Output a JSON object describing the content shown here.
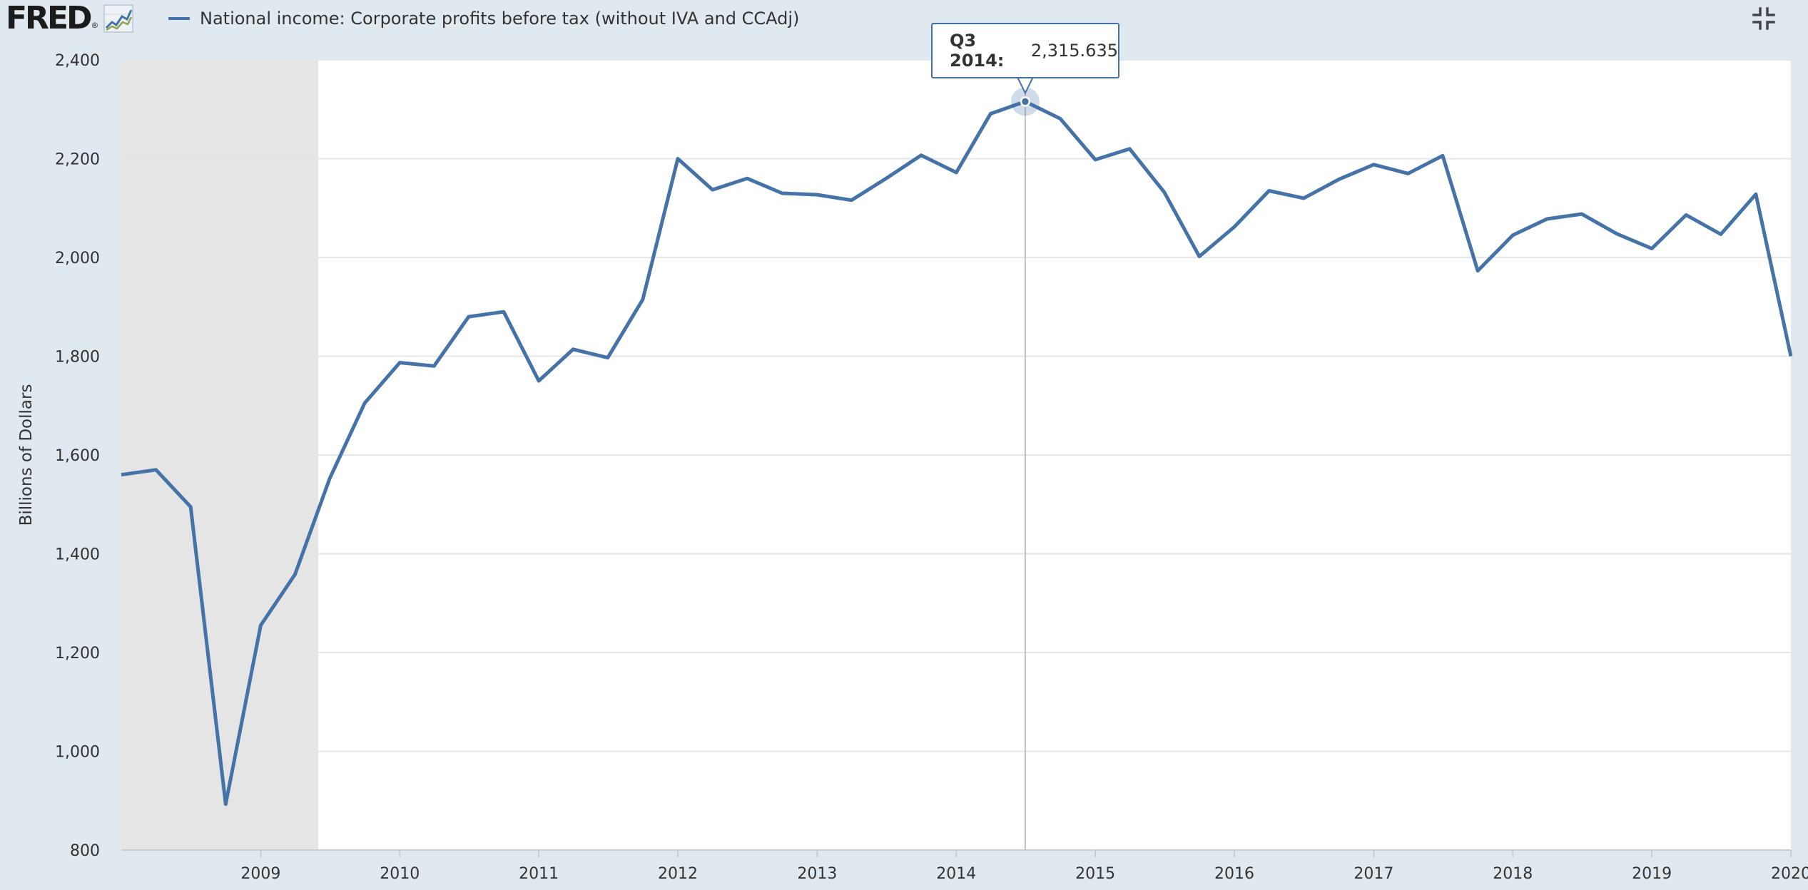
{
  "header": {
    "logo_text": "FRED",
    "logo_mark": "®",
    "legend_label": "National income: Corporate profits before tax (without IVA and CCAdj)"
  },
  "icons": {
    "logo_graph": "line-chart-icon",
    "fullscreen": "exit-fullscreen-icon"
  },
  "colors": {
    "series": "#4572a7",
    "recession": "#e5e5e5",
    "background": "#e1e9f0",
    "plot": "#ffffff"
  },
  "tooltip": {
    "label": "Q3 2014:",
    "value": "2,315.635"
  },
  "chart_data": {
    "type": "line",
    "ylabel": "Billions of Dollars",
    "ylim": [
      800,
      2400
    ],
    "yticks": [
      800,
      1000,
      1200,
      1400,
      1600,
      1800,
      2000,
      2200,
      2400
    ],
    "ytick_labels": [
      "800",
      "1,000",
      "1,200",
      "1,400",
      "1,600",
      "1,800",
      "2,000",
      "2,200",
      "2,400"
    ],
    "xticks": [
      "2009",
      "2010",
      "2011",
      "2012",
      "2013",
      "2014",
      "2015",
      "2016",
      "2017",
      "2018",
      "2019",
      "2020"
    ],
    "xlim": [
      "2008-01-01",
      "2020-01-01"
    ],
    "recession": [
      "2008-01-01",
      "2009-06-01"
    ],
    "highlight": {
      "x": "2014-07-01",
      "y": 2315.635
    },
    "series": [
      {
        "x": [
          "2008-01-01",
          "2008-04-01",
          "2008-07-01",
          "2008-10-01",
          "2009-01-01",
          "2009-04-01",
          "2009-07-01",
          "2009-10-01",
          "2010-01-01",
          "2010-04-01",
          "2010-07-01",
          "2010-10-01",
          "2011-01-01",
          "2011-04-01",
          "2011-07-01",
          "2011-10-01",
          "2012-01-01",
          "2012-04-01",
          "2012-07-01",
          "2012-10-01",
          "2013-01-01",
          "2013-04-01",
          "2013-07-01",
          "2013-10-01",
          "2014-01-01",
          "2014-04-01",
          "2014-07-01",
          "2014-10-01",
          "2015-01-01",
          "2015-04-01",
          "2015-07-01",
          "2015-10-01",
          "2016-01-01",
          "2016-04-01",
          "2016-07-01",
          "2016-10-01",
          "2017-01-01",
          "2017-04-01",
          "2017-07-01",
          "2017-10-01",
          "2018-01-01",
          "2018-04-01",
          "2018-07-01",
          "2018-10-01",
          "2019-01-01",
          "2019-04-01",
          "2019-07-01",
          "2019-10-01",
          "2020-01-01"
        ],
        "values": [
          1560,
          1570,
          1495,
          893,
          1255,
          1358,
          1552,
          1705,
          1787,
          1780,
          1880,
          1890,
          1750,
          1814,
          1797,
          1915,
          2200,
          2137,
          2160,
          2130,
          2127,
          2116,
          2160,
          2207,
          2172,
          2291,
          2315.635,
          2281,
          2198,
          2220,
          2132,
          2002,
          2062,
          2135,
          2120,
          2158,
          2188,
          2170,
          2206,
          1973,
          2045,
          2078,
          2088,
          2048,
          2018,
          2086,
          2047,
          2128,
          1800
        ]
      }
    ]
  }
}
